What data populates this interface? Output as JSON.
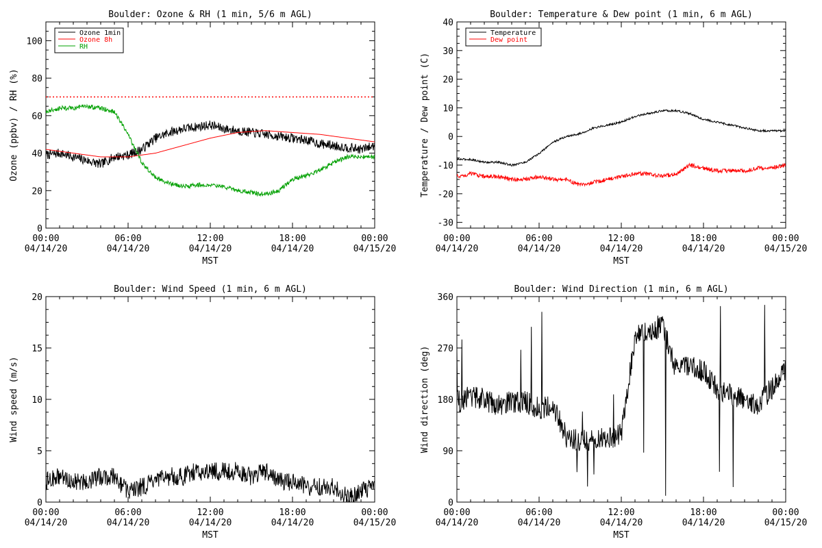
{
  "chart_data": [
    {
      "type": "line",
      "title": "Boulder: Ozone & RH (1 min, 5/6 m AGL)",
      "xlabel": "MST",
      "ylabel": "Ozone (ppbv) / RH (%)",
      "xlim": [
        "04/14/20 00:00",
        "04/15/20 00:00"
      ],
      "ylim": [
        0,
        110
      ],
      "yticks": [
        0,
        20,
        40,
        60,
        80,
        100
      ],
      "xticks": [
        {
          "time": "00:00",
          "date": "04/14/20"
        },
        {
          "time": "06:00",
          "date": "04/14/20"
        },
        {
          "time": "12:00",
          "date": "04/14/20"
        },
        {
          "time": "18:00",
          "date": "04/14/20"
        },
        {
          "time": "00:00",
          "date": "04/15/20"
        }
      ],
      "legend_position": "top-left",
      "reference_line": {
        "y": 70,
        "color": "#ff0000",
        "style": "dotted"
      },
      "series": [
        {
          "name": "Ozone 1min",
          "color": "#000000",
          "x": [
            "00:00",
            "01:00",
            "02:00",
            "03:00",
            "04:00",
            "05:00",
            "06:00",
            "07:00",
            "08:00",
            "09:00",
            "10:00",
            "11:00",
            "12:00",
            "13:00",
            "14:00",
            "15:00",
            "16:00",
            "17:00",
            "18:00",
            "19:00",
            "20:00",
            "21:00",
            "22:00",
            "23:00",
            "24:00"
          ],
          "y": [
            39,
            40,
            38,
            36,
            34,
            38,
            39,
            42,
            48,
            51,
            53,
            54,
            55,
            53,
            52,
            51,
            50,
            49,
            48,
            47,
            45,
            44,
            43,
            42,
            44
          ]
        },
        {
          "name": "Ozone 8h",
          "color": "#ff0000",
          "x": [
            "00:00",
            "02:00",
            "04:00",
            "06:00",
            "08:00",
            "10:00",
            "12:00",
            "14:00",
            "16:00",
            "18:00",
            "20:00",
            "22:00",
            "24:00"
          ],
          "y": [
            42,
            40,
            38,
            38,
            40,
            44,
            48,
            51,
            52,
            51,
            50,
            48,
            46
          ]
        },
        {
          "name": "RH",
          "color": "#00a000",
          "x": [
            "00:00",
            "01:00",
            "02:00",
            "03:00",
            "04:00",
            "05:00",
            "06:00",
            "07:00",
            "08:00",
            "09:00",
            "10:00",
            "11:00",
            "12:00",
            "13:00",
            "14:00",
            "15:00",
            "16:00",
            "17:00",
            "18:00",
            "19:00",
            "20:00",
            "21:00",
            "22:00",
            "23:00",
            "24:00"
          ],
          "y": [
            62,
            64,
            64,
            65,
            64,
            62,
            50,
            35,
            27,
            24,
            22,
            23,
            23,
            22,
            20,
            19,
            18,
            20,
            26,
            28,
            31,
            35,
            38,
            38,
            38
          ]
        }
      ]
    },
    {
      "type": "line",
      "title": "Boulder: Temperature & Dew point (1 min, 6 m AGL)",
      "xlabel": "MST",
      "ylabel": "Temperature / Dew point (C)",
      "xlim": [
        "04/14/20 00:00",
        "04/15/20 00:00"
      ],
      "ylim": [
        -32,
        40
      ],
      "yticks": [
        -30,
        -20,
        -10,
        0,
        10,
        20,
        30,
        40
      ],
      "xticks": [
        {
          "time": "00:00",
          "date": "04/14/20"
        },
        {
          "time": "06:00",
          "date": "04/14/20"
        },
        {
          "time": "12:00",
          "date": "04/14/20"
        },
        {
          "time": "18:00",
          "date": "04/14/20"
        },
        {
          "time": "00:00",
          "date": "04/15/20"
        }
      ],
      "legend_position": "top-left",
      "series": [
        {
          "name": "Temperature",
          "color": "#000000",
          "x": [
            "00:00",
            "01:00",
            "02:00",
            "03:00",
            "04:00",
            "05:00",
            "06:00",
            "07:00",
            "08:00",
            "09:00",
            "10:00",
            "11:00",
            "12:00",
            "13:00",
            "14:00",
            "15:00",
            "16:00",
            "17:00",
            "18:00",
            "19:00",
            "20:00",
            "21:00",
            "22:00",
            "23:00",
            "24:00"
          ],
          "y": [
            -8,
            -8,
            -9,
            -9,
            -10,
            -9,
            -6,
            -2,
            0,
            1,
            3,
            4,
            5,
            7,
            8,
            9,
            9,
            8,
            6,
            5,
            4,
            3,
            2,
            2,
            2
          ]
        },
        {
          "name": "Dew point",
          "color": "#ff0000",
          "x": [
            "00:00",
            "01:00",
            "02:00",
            "03:00",
            "04:00",
            "05:00",
            "06:00",
            "07:00",
            "08:00",
            "09:00",
            "10:00",
            "11:00",
            "12:00",
            "13:00",
            "14:00",
            "15:00",
            "16:00",
            "17:00",
            "18:00",
            "19:00",
            "20:00",
            "21:00",
            "22:00",
            "23:00",
            "24:00"
          ],
          "y": [
            -14,
            -13,
            -14,
            -14,
            -15,
            -15,
            -14,
            -15,
            -15,
            -17,
            -16,
            -15,
            -14,
            -13,
            -13,
            -14,
            -13,
            -10,
            -11,
            -12,
            -12,
            -12,
            -11,
            -11,
            -10
          ]
        }
      ]
    },
    {
      "type": "line",
      "title": "Boulder: Wind Speed (1 min, 6 m AGL)",
      "xlabel": "MST",
      "ylabel": "Wind speed (m/s)",
      "xlim": [
        "04/14/20 00:00",
        "04/15/20 00:00"
      ],
      "ylim": [
        0,
        20
      ],
      "yticks": [
        0,
        5,
        10,
        15,
        20
      ],
      "xticks": [
        {
          "time": "00:00",
          "date": "04/14/20"
        },
        {
          "time": "06:00",
          "date": "04/14/20"
        },
        {
          "time": "12:00",
          "date": "04/14/20"
        },
        {
          "time": "18:00",
          "date": "04/14/20"
        },
        {
          "time": "00:00",
          "date": "04/15/20"
        }
      ],
      "series": [
        {
          "color": "#000000",
          "x": [
            "00:00",
            "01:00",
            "02:00",
            "03:00",
            "04:00",
            "05:00",
            "06:00",
            "07:00",
            "08:00",
            "09:00",
            "10:00",
            "11:00",
            "12:00",
            "13:00",
            "14:00",
            "15:00",
            "16:00",
            "17:00",
            "18:00",
            "19:00",
            "20:00",
            "21:00",
            "22:00",
            "23:00",
            "24:00"
          ],
          "y": [
            2,
            2.5,
            2,
            2,
            2.5,
            2.5,
            1,
            1.5,
            2,
            2.5,
            2.5,
            3,
            3,
            3,
            3,
            2.5,
            3,
            2,
            2,
            1.5,
            1.5,
            1.5,
            0.5,
            1,
            1.5
          ]
        }
      ]
    },
    {
      "type": "line",
      "title": "Boulder: Wind Direction (1 min, 6 m AGL)",
      "xlabel": "MST",
      "ylabel": "Wind direction (deg)",
      "xlim": [
        "04/14/20 00:00",
        "04/15/20 00:00"
      ],
      "ylim": [
        0,
        360
      ],
      "yticks": [
        0,
        90,
        180,
        270,
        360
      ],
      "xticks": [
        {
          "time": "00:00",
          "date": "04/14/20"
        },
        {
          "time": "06:00",
          "date": "04/14/20"
        },
        {
          "time": "12:00",
          "date": "04/14/20"
        },
        {
          "time": "18:00",
          "date": "04/14/20"
        },
        {
          "time": "00:00",
          "date": "04/15/20"
        }
      ],
      "series": [
        {
          "color": "#000000",
          "x": [
            "00:00",
            "01:00",
            "02:00",
            "03:00",
            "04:00",
            "05:00",
            "06:00",
            "07:00",
            "08:00",
            "09:00",
            "10:00",
            "11:00",
            "12:00",
            "13:00",
            "14:00",
            "15:00",
            "16:00",
            "17:00",
            "18:00",
            "19:00",
            "20:00",
            "21:00",
            "22:00",
            "23:00",
            "24:00"
          ],
          "y": [
            175,
            185,
            180,
            170,
            175,
            175,
            165,
            170,
            115,
            105,
            110,
            110,
            120,
            290,
            300,
            310,
            230,
            240,
            230,
            200,
            190,
            180,
            170,
            200,
            230
          ]
        }
      ]
    }
  ]
}
